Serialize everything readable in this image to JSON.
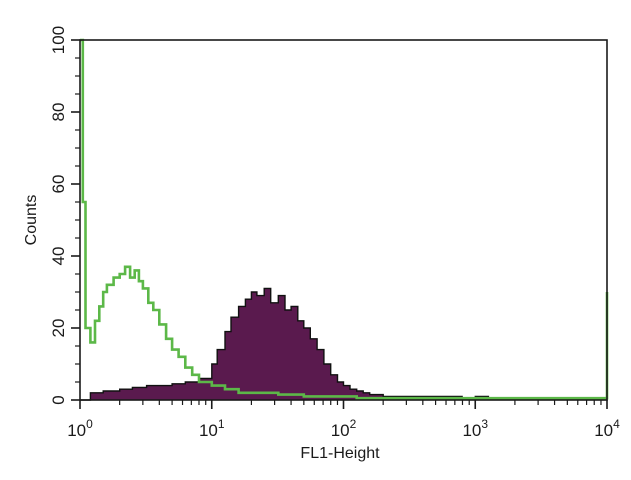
{
  "chart_data": {
    "type": "histogram",
    "title": "",
    "xlabel": "FL1-Height",
    "ylabel": "Counts",
    "x_scale": "log",
    "xlim": [
      1,
      10000
    ],
    "ylim": [
      0,
      100
    ],
    "x_ticks": [
      {
        "value": 1,
        "base": "10",
        "exp": "0"
      },
      {
        "value": 10,
        "base": "10",
        "exp": "1"
      },
      {
        "value": 100,
        "base": "10",
        "exp": "2"
      },
      {
        "value": 1000,
        "base": "10",
        "exp": "3"
      },
      {
        "value": 10000,
        "base": "10",
        "exp": "4"
      }
    ],
    "y_ticks": [
      "0",
      "20",
      "40",
      "60",
      "80",
      "100"
    ],
    "grid": false,
    "legend": "none",
    "series": [
      {
        "style": "filled",
        "color": "#5a1a4e",
        "outline": "#111111",
        "x": [
          1.0,
          1.2,
          1.5,
          2.0,
          2.5,
          3.2,
          4.0,
          5.0,
          6.3,
          8.0,
          10,
          11,
          12.6,
          14,
          16,
          18,
          20,
          22,
          25,
          28,
          32,
          36,
          40,
          45,
          50,
          56,
          63,
          71,
          80,
          90,
          100,
          112,
          126,
          141,
          158,
          178,
          200,
          251,
          316,
          398,
          501,
          631,
          794,
          1000,
          1259,
          1585,
          1995,
          2512,
          3162,
          3981,
          5012,
          6310,
          7943,
          10000
        ],
        "y": [
          0,
          2,
          2.5,
          3,
          3.5,
          4,
          4,
          4.5,
          5,
          6,
          10,
          14,
          19,
          23,
          26,
          28,
          30,
          29,
          31,
          27,
          29,
          25,
          26,
          22,
          20,
          17,
          14,
          10,
          7,
          5,
          4,
          3,
          2.5,
          2,
          1.5,
          1.5,
          1,
          1,
          1,
          1,
          1,
          1,
          0.5,
          1,
          0.5,
          0.5,
          0.5,
          0.5,
          0.5,
          0.5,
          0.5,
          0.5,
          0.5,
          0
        ]
      },
      {
        "style": "line",
        "color": "#5cb848",
        "x": [
          1.0,
          1.05,
          1.1,
          1.2,
          1.3,
          1.4,
          1.5,
          1.6,
          1.8,
          2.0,
          2.2,
          2.4,
          2.6,
          2.8,
          3.0,
          3.3,
          3.6,
          4.0,
          4.5,
          5.0,
          5.6,
          6.3,
          7.1,
          8.0,
          9.0,
          10,
          11,
          12.6,
          14,
          16,
          18,
          20,
          25,
          32,
          40,
          50,
          63,
          79,
          100,
          126,
          158,
          200,
          251,
          316,
          398,
          501,
          631,
          794,
          1000,
          1259,
          1585,
          1995,
          2512,
          3162,
          3981,
          5012,
          6310,
          7943,
          9800,
          10000
        ],
        "y": [
          100,
          55,
          20,
          16,
          22,
          26,
          30,
          32,
          34,
          35,
          37,
          34,
          36,
          33,
          31,
          27,
          25,
          21,
          17,
          14,
          12,
          9,
          7,
          5,
          5,
          4,
          4,
          3,
          3,
          2,
          2,
          2,
          2,
          1.5,
          1.5,
          1,
          1,
          1,
          1,
          0.5,
          0.5,
          0.5,
          0.5,
          0.5,
          0.5,
          0.5,
          0.5,
          0.5,
          0.5,
          0.5,
          0.5,
          0.5,
          0.5,
          0.5,
          0.5,
          0.5,
          0.5,
          0.5,
          0.5,
          30
        ]
      }
    ]
  }
}
